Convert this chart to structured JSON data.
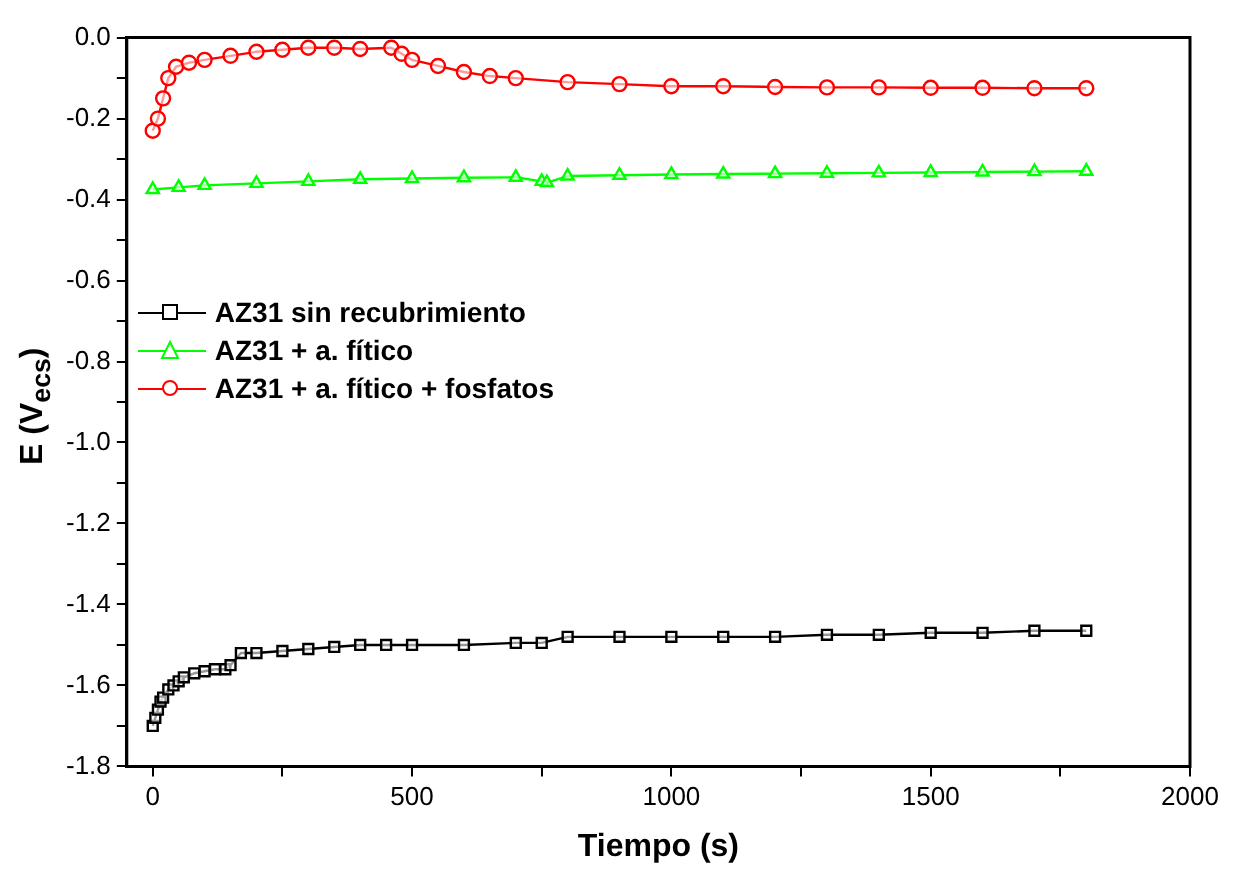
{
  "chart_data": {
    "type": "line",
    "xlabel": "Tiempo (s)",
    "ylabel": "E (V$_{ecs}$)",
    "xlim": [
      -50,
      2000
    ],
    "xticks": [
      0,
      {
        "value": 250,
        "label": null
      },
      500,
      {
        "value": 750,
        "label": null
      },
      1000,
      {
        "value": 1250,
        "label": null
      },
      1500,
      {
        "value": 1750,
        "label": null
      },
      2000
    ],
    "ylim": [
      -1.8,
      0
    ],
    "yticks": [
      -1.8,
      {
        "value": -1.7,
        "label": null
      },
      -1.6,
      {
        "value": -1.5,
        "label": null
      },
      -1.4,
      {
        "value": -1.3,
        "label": null
      },
      -1.2,
      {
        "value": -1.1,
        "label": null
      },
      {
        "value": -1.0,
        "label": "-1.0"
      },
      {
        "value": -0.9,
        "label": null
      },
      -0.8,
      {
        "value": -0.7,
        "label": null
      },
      -0.6,
      {
        "value": -0.5,
        "label": null
      },
      -0.4,
      {
        "value": -0.3,
        "label": null
      },
      -0.2,
      {
        "value": -0.1,
        "label": null
      },
      {
        "value": 0,
        "label": "0.0"
      }
    ],
    "grid": false,
    "legend": "left",
    "line_style": "solid",
    "series": [
      {
        "name": "AZ31 sin recubrimiento",
        "color": "#000000",
        "marker": "square",
        "x": [
          0,
          5,
          10,
          15,
          20,
          30,
          40,
          50,
          60,
          80,
          100,
          120,
          140,
          150,
          170,
          200,
          250,
          300,
          350,
          400,
          450,
          500,
          600,
          700,
          750,
          800,
          900,
          1000,
          1100,
          1200,
          1300,
          1400,
          1500,
          1600,
          1700,
          1800
        ],
        "values": [
          -1.7,
          -1.68,
          -1.66,
          -1.64,
          -1.63,
          -1.61,
          -1.6,
          -1.59,
          -1.58,
          -1.57,
          -1.565,
          -1.56,
          -1.56,
          -1.55,
          -1.52,
          -1.52,
          -1.515,
          -1.51,
          -1.505,
          -1.5,
          -1.5,
          -1.5,
          -1.5,
          -1.495,
          -1.495,
          -1.48,
          -1.48,
          -1.48,
          -1.48,
          -1.48,
          -1.475,
          -1.475,
          -1.47,
          -1.47,
          -1.465,
          -1.465
        ]
      },
      {
        "name": "AZ31 + a. fítico",
        "color": "#00ff00",
        "marker": "triangle",
        "x": [
          0,
          50,
          100,
          200,
          300,
          400,
          500,
          600,
          700,
          750,
          760,
          800,
          900,
          1000,
          1100,
          1200,
          1300,
          1400,
          1500,
          1600,
          1700,
          1800
        ],
        "values": [
          -0.375,
          -0.37,
          -0.365,
          -0.36,
          -0.355,
          -0.35,
          -0.348,
          -0.346,
          -0.345,
          -0.355,
          -0.358,
          -0.342,
          -0.34,
          -0.338,
          -0.337,
          -0.336,
          -0.335,
          -0.334,
          -0.333,
          -0.332,
          -0.331,
          -0.33
        ]
      },
      {
        "name": "AZ31 + a. fítico + fosfatos",
        "color": "#ff0000",
        "marker": "circle",
        "x": [
          0,
          10,
          20,
          30,
          45,
          70,
          100,
          150,
          200,
          250,
          300,
          350,
          400,
          460,
          480,
          500,
          550,
          600,
          650,
          700,
          800,
          900,
          1000,
          1100,
          1200,
          1300,
          1400,
          1500,
          1600,
          1700,
          1800
        ],
        "values": [
          -0.23,
          -0.2,
          -0.15,
          -0.1,
          -0.072,
          -0.062,
          -0.055,
          -0.045,
          -0.035,
          -0.03,
          -0.025,
          -0.025,
          -0.028,
          -0.025,
          -0.04,
          -0.055,
          -0.07,
          -0.085,
          -0.095,
          -0.1,
          -0.11,
          -0.115,
          -0.12,
          -0.12,
          -0.122,
          -0.123,
          -0.123,
          -0.124,
          -0.124,
          -0.125,
          -0.125
        ]
      }
    ]
  }
}
